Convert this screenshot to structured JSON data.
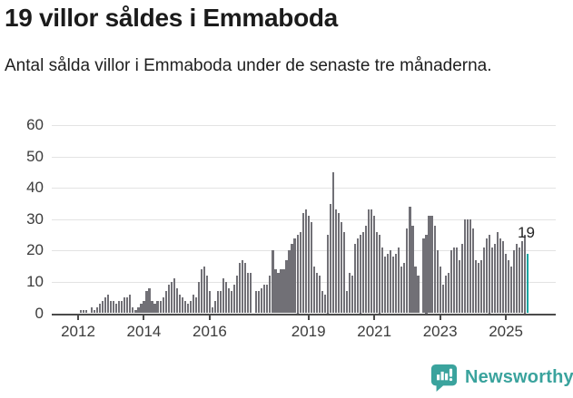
{
  "header": {
    "title": "19 villor såldes i Emmaboda",
    "subtitle": "Antal sålda villor i Emmaboda under de senaste tre månaderna."
  },
  "footer": {
    "logo_text": "Newsworthy",
    "logo_icon": "speech-bubble-bar-chart-icon",
    "logo_color": "#3aa39d"
  },
  "chart_data": {
    "type": "bar",
    "title": "19 villor såldes i Emmaboda",
    "subtitle": "Antal sålda villor i Emmaboda under de senaste tre månaderna.",
    "interval": "monthly",
    "x_start": "2012-02",
    "x_end": "2025-09",
    "x_tick_labels": [
      "2012",
      "2014",
      "2016",
      "2019",
      "2021",
      "2023",
      "2025"
    ],
    "x_tick_years": [
      2012,
      2014,
      2016,
      2019,
      2021,
      2023,
      2025
    ],
    "y_ticks": [
      0,
      10,
      20,
      30,
      40,
      50,
      60
    ],
    "ylim": [
      0,
      60
    ],
    "grid": "horizontal",
    "legend": "none",
    "bar_color": "#717076",
    "highlight_color": "#0aa5a0",
    "annotation": {
      "label": "19",
      "value": 19,
      "applies_to": "last-bar"
    },
    "values": [
      1,
      1,
      1,
      0,
      2,
      1,
      2,
      3,
      4,
      5,
      6,
      4,
      4,
      3,
      4,
      4,
      5,
      5,
      6,
      2,
      1,
      2,
      3,
      4,
      7,
      8,
      4,
      3,
      4,
      4,
      5,
      7,
      9,
      10,
      11,
      8,
      6,
      5,
      4,
      3,
      4,
      6,
      5,
      10,
      14,
      15,
      12,
      7,
      2,
      4,
      7,
      7,
      11,
      10,
      8,
      7,
      9,
      12,
      16,
      17,
      16,
      13,
      13,
      0,
      7,
      7,
      8,
      9,
      9,
      12,
      20,
      14,
      13,
      14,
      14,
      17,
      20,
      22,
      24,
      25,
      26,
      32,
      33,
      31,
      29,
      15,
      13,
      12,
      7,
      6,
      25,
      35,
      45,
      33,
      32,
      29,
      26,
      7,
      13,
      12,
      22,
      24,
      25,
      26,
      28,
      33,
      33,
      31,
      26,
      25,
      21,
      18,
      19,
      20,
      18,
      19,
      21,
      15,
      16,
      27,
      34,
      28,
      15,
      12,
      0,
      24,
      25,
      31,
      31,
      28,
      20,
      15,
      9,
      12,
      13,
      20,
      21,
      21,
      17,
      22,
      30,
      30,
      30,
      27,
      17,
      16,
      17,
      21,
      24,
      25,
      21,
      22,
      26,
      24,
      23,
      19,
      17,
      15,
      20,
      22,
      21,
      23,
      25,
      19
    ]
  }
}
